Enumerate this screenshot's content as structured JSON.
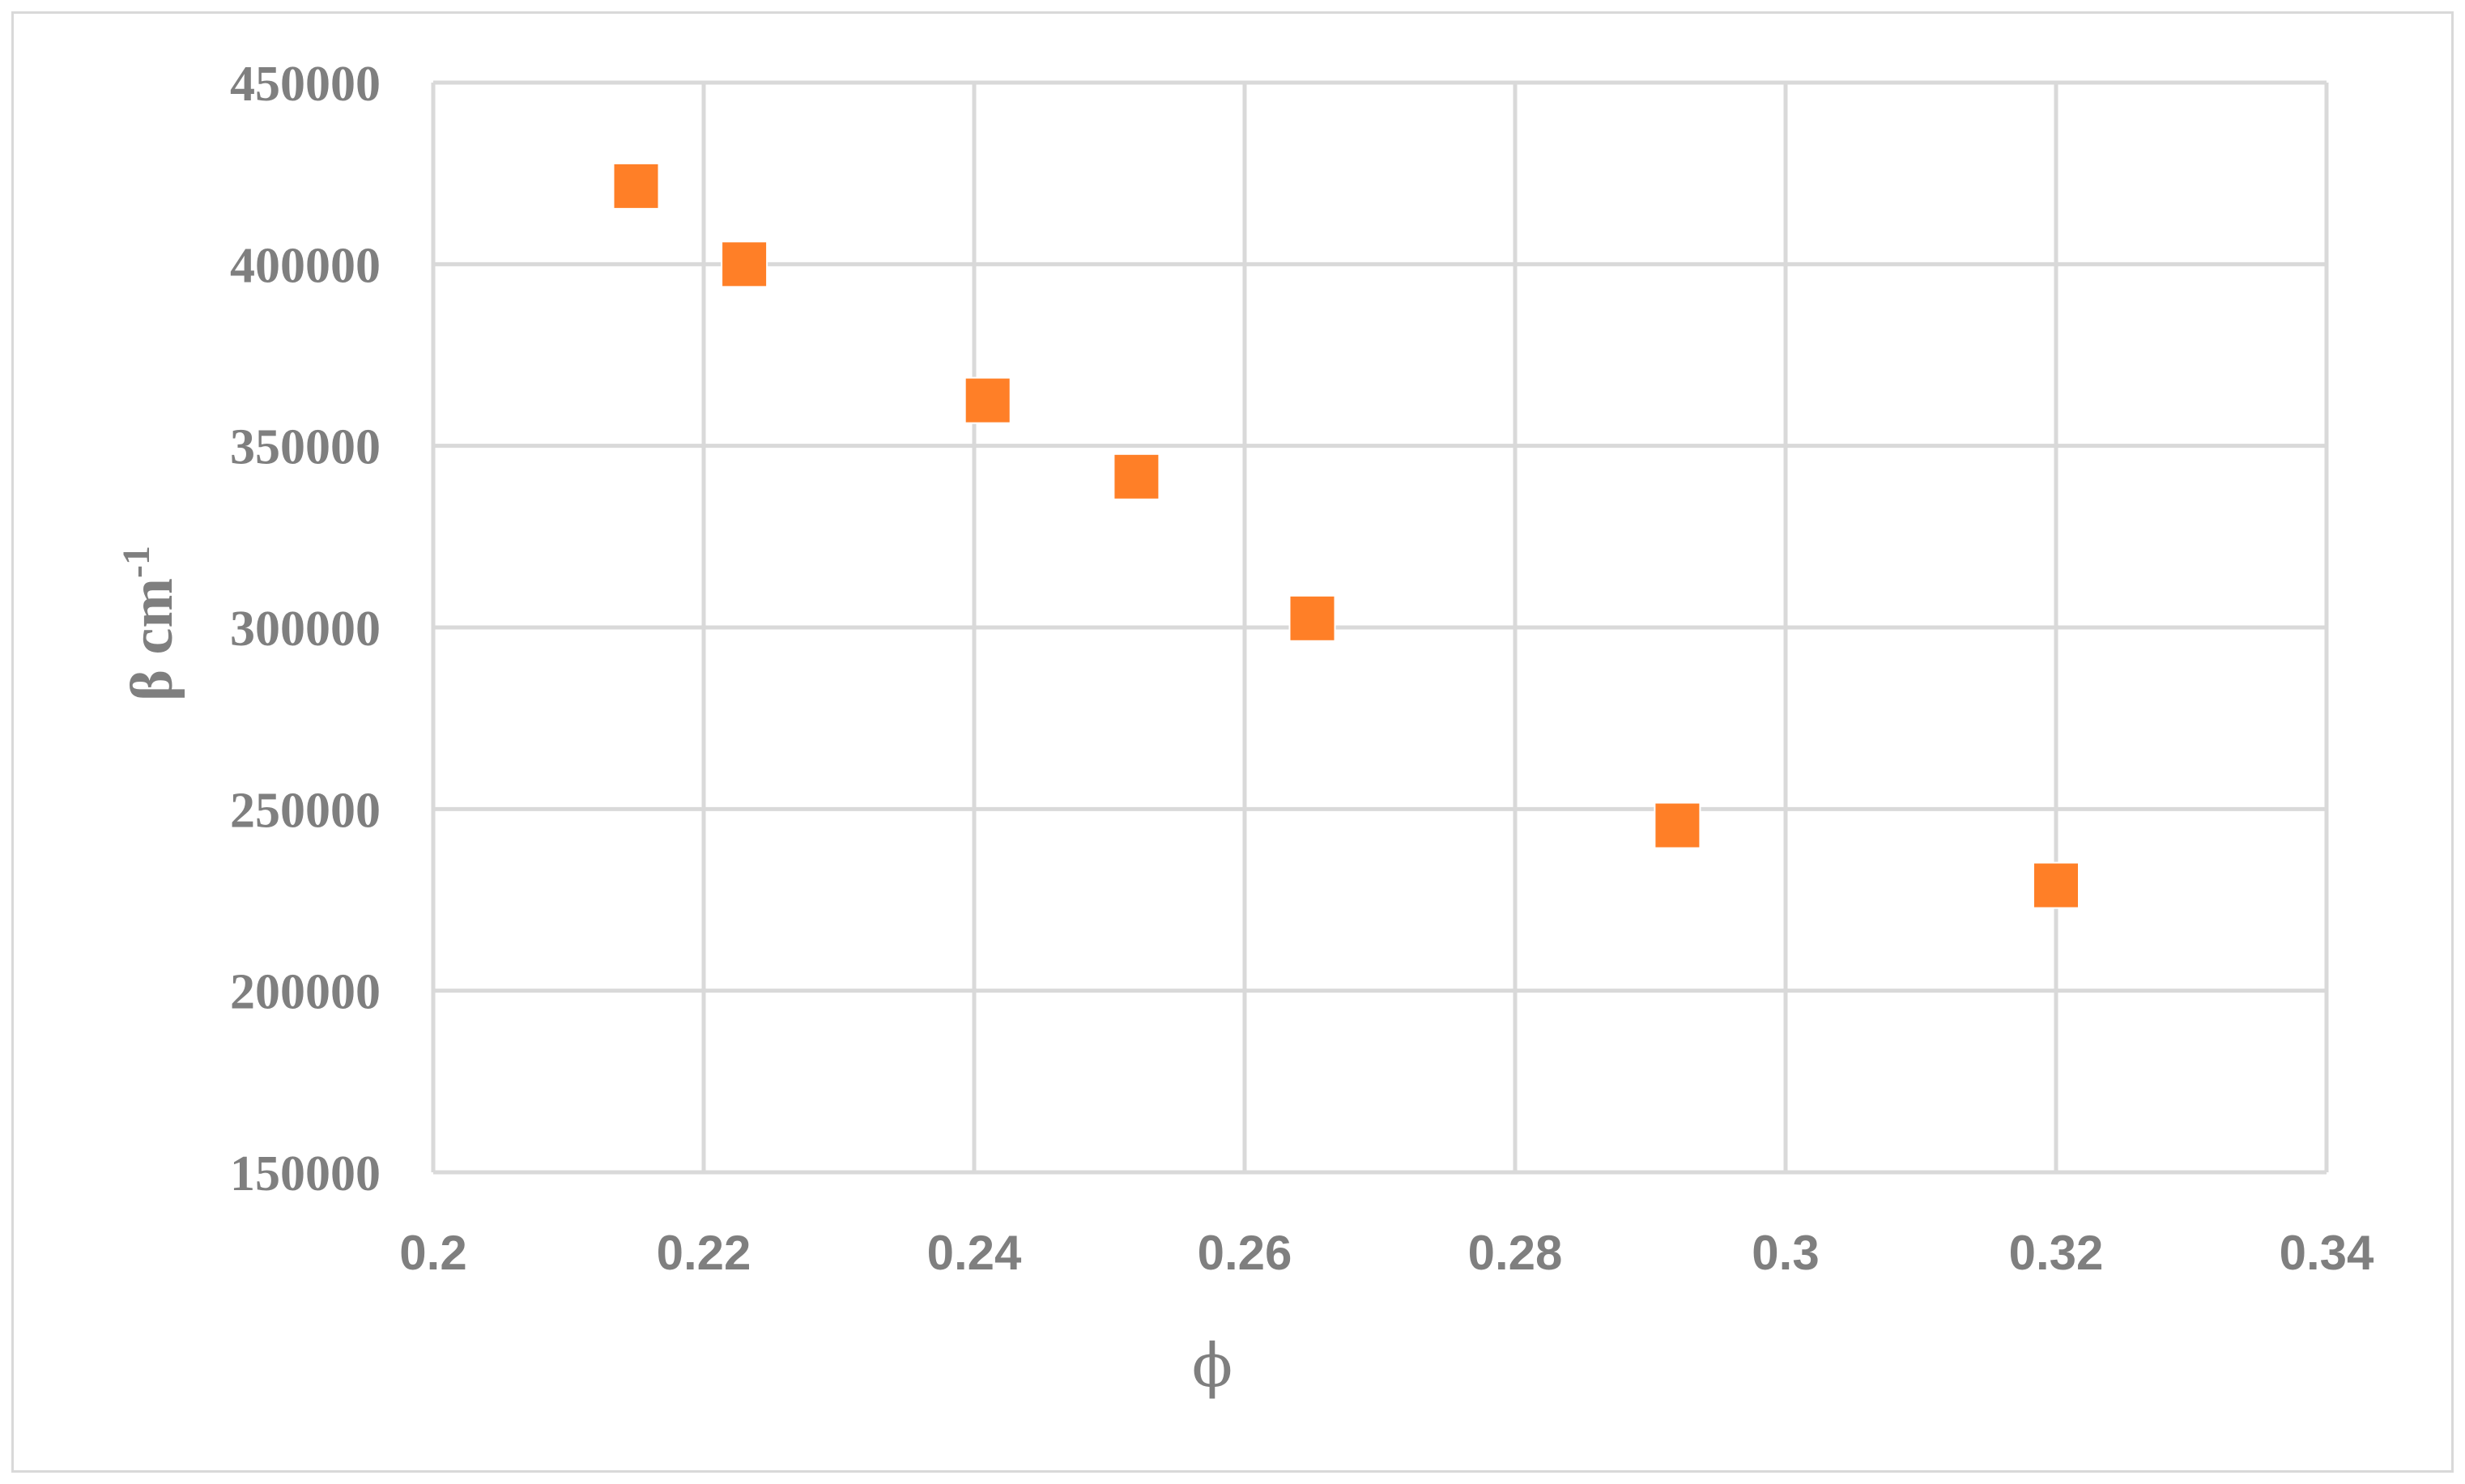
{
  "chart_data": {
    "type": "scatter",
    "xlabel": "ϕ",
    "ylabel_main": "β cm",
    "ylabel_sup": "-1",
    "xlim": [
      0.2,
      0.34
    ],
    "ylim": [
      150000,
      450000
    ],
    "x_ticks": [
      0.2,
      0.22,
      0.24,
      0.26,
      0.28,
      0.3,
      0.32,
      0.34
    ],
    "x_tick_labels": [
      "0.2",
      "0.22",
      "0.24",
      "0.26",
      "0.28",
      "0.3",
      "0.32",
      "0.34"
    ],
    "y_ticks": [
      150000,
      200000,
      250000,
      300000,
      350000,
      400000,
      450000
    ],
    "y_tick_labels": [
      "150000",
      "200000",
      "250000",
      "300000",
      "350000",
      "400000",
      "450000"
    ],
    "grid": true,
    "marker": "square",
    "color": "#ff7f27",
    "grid_color": "#d9d9d9",
    "points": [
      {
        "x": 0.215,
        "y": 421500
      },
      {
        "x": 0.223,
        "y": 400000
      },
      {
        "x": 0.241,
        "y": 362500
      },
      {
        "x": 0.252,
        "y": 341500
      },
      {
        "x": 0.265,
        "y": 302500
      },
      {
        "x": 0.292,
        "y": 245500
      },
      {
        "x": 0.32,
        "y": 229000
      }
    ]
  }
}
